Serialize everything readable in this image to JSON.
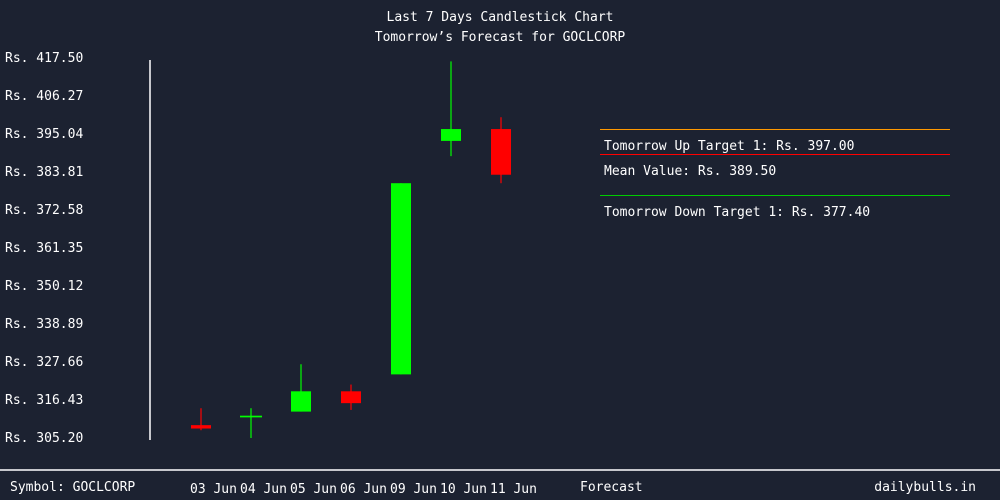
{
  "header": {
    "title": "Last 7 Days Candlestick Chart",
    "subtitle": "Tomorrow’s Forecast for GOCLCORP"
  },
  "footer": {
    "symbol_text": "Symbol: GOCLCORP",
    "forecast_text": "Forecast",
    "brand": "dailybulls.in"
  },
  "forecast": {
    "up_target": "Tomorrow Up Target 1: Rs. 397.00",
    "mean": "Mean Value: Rs. 389.50",
    "down_target": "Tomorrow Down Target 1: Rs. 377.40"
  },
  "colors": {
    "background": "#1c2231",
    "up": "#00ff00",
    "down": "#ff0000",
    "up_target_line": "#ff9900",
    "mean_line": "#ff0000",
    "down_target_line": "#00cc00",
    "axis": "#ffffff"
  },
  "chart_data": {
    "type": "candlestick",
    "title": "Last 7 Days Candlestick Chart",
    "subtitle": "Tomorrow’s Forecast for GOCLCORP",
    "y_prefix": "Rs.",
    "y_ticks": [
      "Rs. 417.50",
      "Rs. 406.27",
      "Rs. 395.04",
      "Rs. 383.81",
      "Rs. 372.58",
      "Rs. 361.35",
      "Rs. 350.12",
      "Rs. 338.89",
      "Rs. 327.66",
      "Rs. 316.43",
      "Rs. 305.20"
    ],
    "ylim": [
      305.2,
      417.5
    ],
    "categories": [
      "03 Jun",
      "04 Jun",
      "05 Jun",
      "06 Jun",
      "09 Jun",
      "10 Jun",
      "11 Jun"
    ],
    "candles": [
      {
        "date": "03 Jun",
        "open": 309.0,
        "high": 314.0,
        "low": 307.5,
        "close": 308.0,
        "dir": "down"
      },
      {
        "date": "04 Jun",
        "open": 311.0,
        "high": 314.0,
        "low": 305.2,
        "close": 311.5,
        "dir": "up"
      },
      {
        "date": "05 Jun",
        "open": 313.0,
        "high": 327.0,
        "low": 313.0,
        "close": 319.0,
        "dir": "up"
      },
      {
        "date": "06 Jun",
        "open": 319.0,
        "high": 321.0,
        "low": 313.5,
        "close": 315.5,
        "dir": "down"
      },
      {
        "date": "09 Jun",
        "open": 324.0,
        "high": 380.5,
        "low": 324.0,
        "close": 380.5,
        "dir": "up"
      },
      {
        "date": "10 Jun",
        "open": 393.0,
        "high": 416.5,
        "low": 388.5,
        "close": 396.5,
        "dir": "up"
      },
      {
        "date": "11 Jun",
        "open": 396.5,
        "high": 400.0,
        "low": 380.5,
        "close": 383.0,
        "dir": "down"
      }
    ],
    "forecast": {
      "up_target": 397.0,
      "mean": 389.5,
      "down_target": 377.4
    }
  }
}
